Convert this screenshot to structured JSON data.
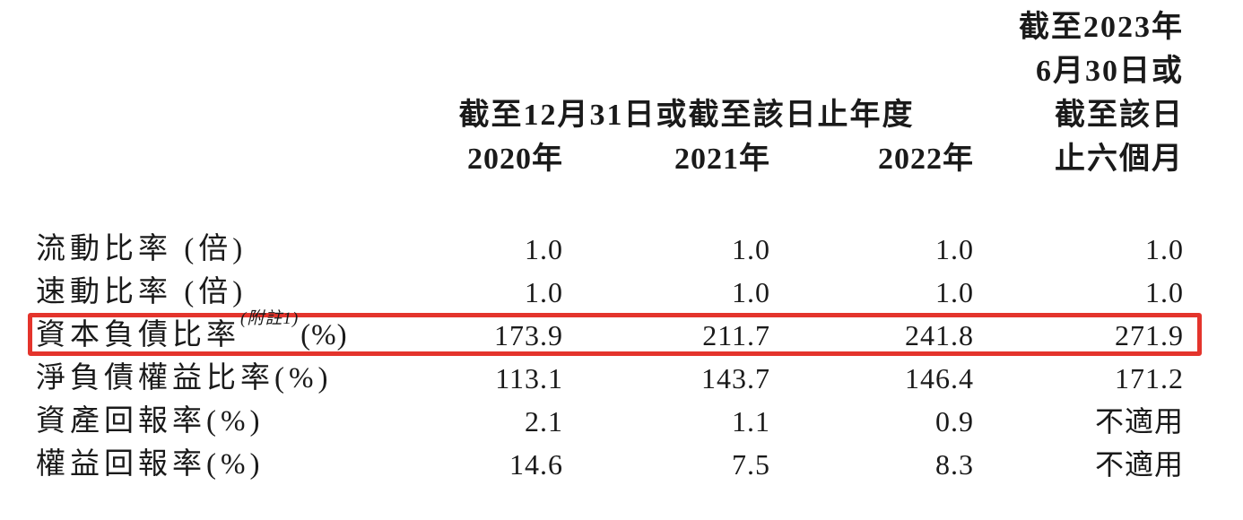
{
  "page": {
    "background_color": "#ffffff",
    "text_color": "#1a1a1a",
    "highlight_border_color": "#e4342c"
  },
  "table": {
    "header": {
      "annual_period": "截至12月31日或截至該日止年度",
      "interim_lines": [
        "截至2023年",
        "6月30日或",
        "截至該日",
        "止六個月"
      ],
      "years": [
        "2020年",
        "2021年",
        "2022年"
      ]
    },
    "rows": [
      {
        "label": "流動比率 (倍)",
        "note": "",
        "tail": "",
        "values": [
          "1.0",
          "1.0",
          "1.0",
          "1.0"
        ]
      },
      {
        "label": "速動比率 (倍)",
        "note": "",
        "tail": "",
        "values": [
          "1.0",
          "1.0",
          "1.0",
          "1.0"
        ]
      },
      {
        "label": "資本負債比率",
        "note": "(附註1)",
        "tail": "(%)",
        "values": [
          "173.9",
          "211.7",
          "241.8",
          "271.9"
        ],
        "highlighted": true
      },
      {
        "label": "淨負債權益比率(%)",
        "note": "",
        "tail": "",
        "values": [
          "113.1",
          "143.7",
          "146.4",
          "171.2"
        ]
      },
      {
        "label": "資產回報率(%)",
        "note": "",
        "tail": "",
        "values": [
          "2.1",
          "1.1",
          "0.9",
          "不適用"
        ]
      },
      {
        "label": "權益回報率(%)",
        "note": "",
        "tail": "",
        "values": [
          "14.6",
          "7.5",
          "8.3",
          "不適用"
        ]
      }
    ]
  }
}
